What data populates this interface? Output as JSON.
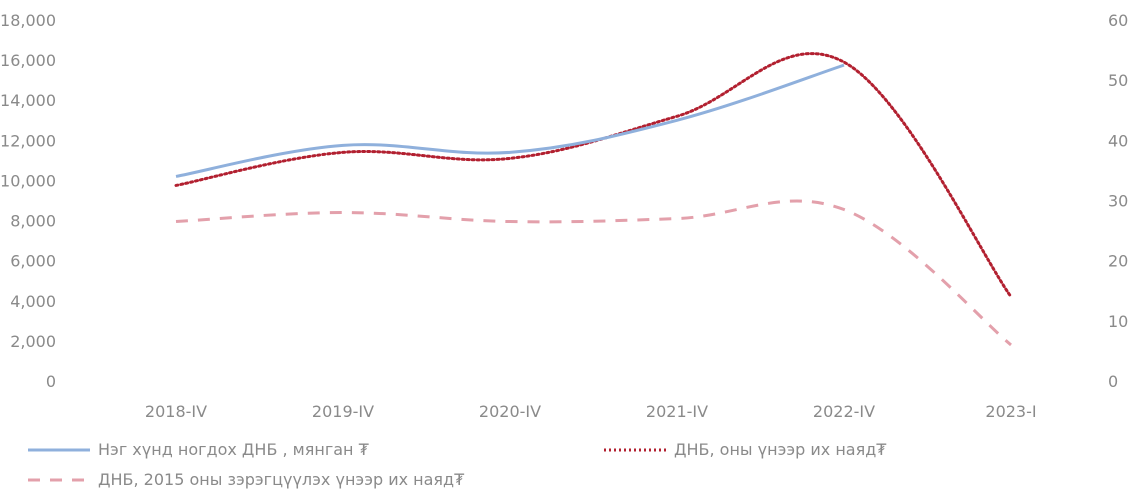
{
  "chart_data": {
    "type": "line",
    "categories": [
      "2018-IV",
      "2019-IV",
      "2020-IV",
      "2021-IV",
      "2022-IV",
      "2023-I"
    ],
    "y_left": {
      "ticks": [
        "0",
        "2,000",
        "4,000",
        "6,000",
        "8,000",
        "10,000",
        "12,000",
        "14,000",
        "16,000",
        "18,000"
      ],
      "range": [
        0,
        18000
      ]
    },
    "y_right": {
      "ticks": [
        "0",
        "10",
        "20",
        "30",
        "40",
        "50",
        "60"
      ],
      "range": [
        0,
        60
      ]
    },
    "series": [
      {
        "name": "Нэг хүнд ногдох ДНБ , мянган ₮",
        "axis": "left",
        "style": "solid",
        "color": "#8fb0dc",
        "values": [
          10200,
          11750,
          11400,
          13000,
          15750,
          null
        ]
      },
      {
        "name": "ДНБ, оны үнээр их наяд₮",
        "axis": "right",
        "style": "dotted",
        "color": "#b22030",
        "values": [
          32.5,
          38,
          37,
          44,
          53,
          14
        ]
      },
      {
        "name": "ДНБ, 2015 оны зэрэгцүүлэх үнээр их наяд₮",
        "axis": "right",
        "style": "dashed",
        "color": "#e3a0ab",
        "values": [
          26.5,
          28,
          26.5,
          27,
          28.5,
          6
        ]
      }
    ],
    "grid": false,
    "legend_position": "bottom"
  }
}
